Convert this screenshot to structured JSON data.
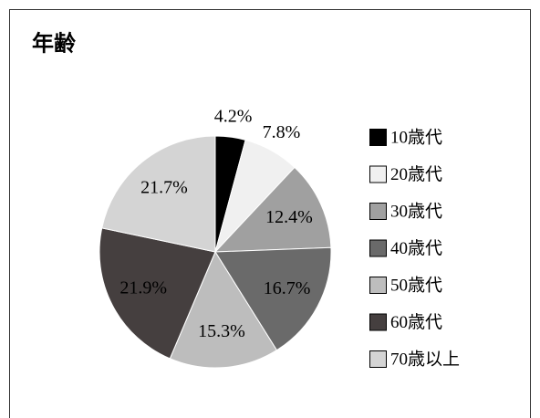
{
  "chart_data": {
    "type": "pie",
    "title": "年齢",
    "categories": [
      "10歳代",
      "20歳代",
      "30歳代",
      "40歳代",
      "50歳代",
      "60歳代",
      "70歳以上"
    ],
    "values": [
      4.2,
      7.8,
      12.4,
      16.7,
      15.3,
      21.9,
      21.7
    ],
    "value_labels": [
      "4.2%",
      "7.8%",
      "12.4%",
      "16.7%",
      "15.3%",
      "21.9%",
      "21.7%"
    ],
    "colors": [
      "#000000",
      "#f0f0f0",
      "#a0a0a0",
      "#6a6a6a",
      "#bdbdbd",
      "#453f3f",
      "#d4d4d4"
    ],
    "legend": "right"
  }
}
